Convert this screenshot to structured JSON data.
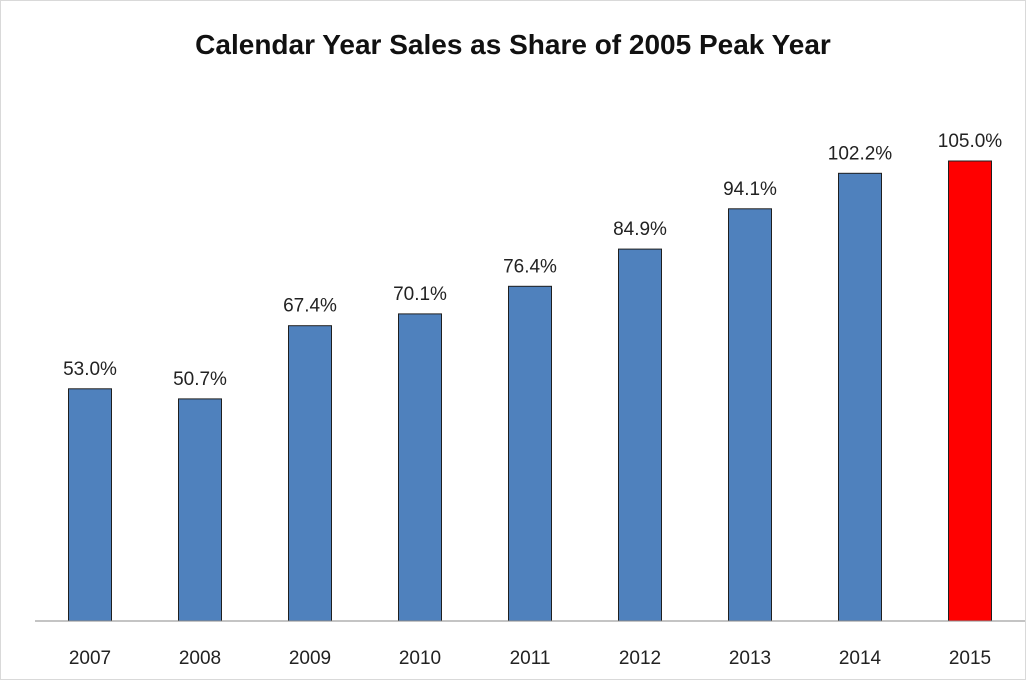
{
  "chart_data": {
    "type": "bar",
    "title": "Calendar Year Sales as Share of 2005 Peak Year",
    "xlabel": "",
    "ylabel": "",
    "categories": [
      "2007",
      "2008",
      "2009",
      "2010",
      "2011",
      "2012",
      "2013",
      "2014",
      "2015"
    ],
    "values": [
      53.0,
      50.7,
      67.4,
      70.1,
      76.4,
      84.9,
      94.1,
      102.2,
      105.0
    ],
    "data_labels": [
      "53.0%",
      "50.7%",
      "67.4%",
      "70.1%",
      "76.4%",
      "84.9%",
      "94.1%",
      "102.2%",
      "105.0%"
    ],
    "value_unit": "%",
    "ylim": [
      0,
      105
    ],
    "y_axis_visible": false,
    "grid": false,
    "legend": "none",
    "colors": {
      "default_bar": "#4f81bd",
      "highlight_bar": "#ff0000",
      "bar_outline": "#1f1f1f",
      "axis_line": "#888888"
    },
    "highlight_category": "2015"
  }
}
